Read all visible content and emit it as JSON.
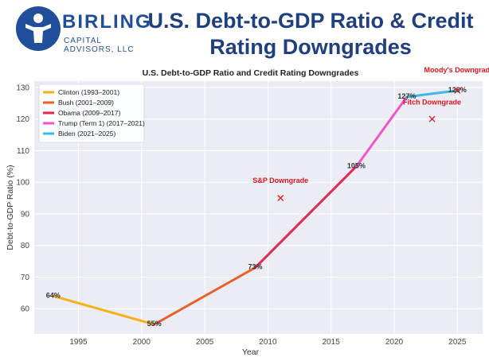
{
  "brand": {
    "name": "BIRLING",
    "sub": "CAPITAL ADVISORS, LLC",
    "icon": "person-logo-icon",
    "color": "#1f4f9a"
  },
  "headline": {
    "line1": "U.S. Debt-to-GDP Ratio & Credit",
    "line2": "Rating Downgrades"
  },
  "chart_data": {
    "type": "line",
    "title": "U.S. Debt-to-GDP Ratio and Credit Rating Downgrades",
    "xlabel": "Year",
    "ylabel": "Debt-to-GDP Ratio (%)",
    "xlim": [
      1991.5,
      2027
    ],
    "ylim": [
      52,
      132
    ],
    "xticks": [
      1995,
      2000,
      2005,
      2010,
      2015,
      2020,
      2025
    ],
    "yticks": [
      60,
      70,
      80,
      90,
      100,
      110,
      120,
      130
    ],
    "grid": true,
    "legend_position": "upper-left",
    "series": [
      {
        "name": "Clinton (1993–2001)",
        "color": "#f5b01a",
        "x": [
          1993,
          2001
        ],
        "y": [
          64,
          55
        ]
      },
      {
        "name": "Bush (2001–2009)",
        "color": "#e8602c",
        "x": [
          2001,
          2009
        ],
        "y": [
          55,
          73
        ]
      },
      {
        "name": "Obama (2009–2017)",
        "color": "#e3284f",
        "x": [
          2009,
          2017
        ],
        "y": [
          73,
          105
        ]
      },
      {
        "name": "Trump (Term 1) (2017–2021)",
        "color": "#ee55cc",
        "x": [
          2017,
          2021
        ],
        "y": [
          105,
          127
        ]
      },
      {
        "name": "Biden (2021–2025)",
        "color": "#3bb8ea",
        "x": [
          2021,
          2025
        ],
        "y": [
          127,
          129
        ]
      }
    ],
    "point_labels": [
      {
        "x": 1993,
        "y": 64,
        "text": "64%"
      },
      {
        "x": 2001,
        "y": 55,
        "text": "55%"
      },
      {
        "x": 2009,
        "y": 73,
        "text": "73%"
      },
      {
        "x": 2017,
        "y": 105,
        "text": "105%"
      },
      {
        "x": 2021,
        "y": 127,
        "text": "127%"
      },
      {
        "x": 2025,
        "y": 129,
        "text": "129%"
      }
    ],
    "downgrades": [
      {
        "label": "S&P Downgrade",
        "x": 2011,
        "y": 95
      },
      {
        "label": "Fitch Downgrade",
        "x": 2023,
        "y": 120
      },
      {
        "label": "Moody's Downgrade",
        "x": 2025,
        "y": 129
      }
    ],
    "marker_color": "#e0141e"
  }
}
